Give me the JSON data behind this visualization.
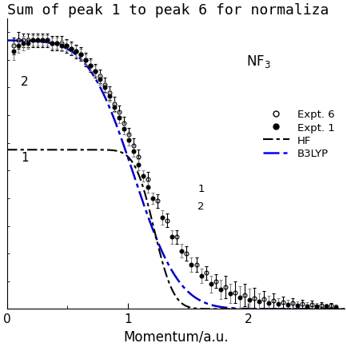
{
  "title": "Sum of peak 1 to peak 6 for normaliza",
  "xlabel": "Momentum/a.u.",
  "xlim": [
    0,
    2.8
  ],
  "ylim": [
    0,
    1.05
  ],
  "xticks": [
    0,
    1.0,
    2.0
  ],
  "expt6_x": [
    0.05,
    0.09,
    0.13,
    0.17,
    0.21,
    0.25,
    0.29,
    0.33,
    0.37,
    0.41,
    0.45,
    0.49,
    0.53,
    0.57,
    0.61,
    0.65,
    0.69,
    0.73,
    0.77,
    0.81,
    0.85,
    0.89,
    0.93,
    0.97,
    1.01,
    1.05,
    1.09,
    1.17,
    1.25,
    1.33,
    1.41,
    1.49,
    1.57,
    1.65,
    1.73,
    1.81,
    1.89,
    1.97,
    2.05,
    2.13,
    2.21,
    2.29,
    2.37,
    2.45,
    2.53,
    2.61,
    2.69
  ],
  "expt6_y": [
    0.95,
    0.97,
    0.97,
    0.97,
    0.97,
    0.97,
    0.97,
    0.97,
    0.96,
    0.96,
    0.96,
    0.95,
    0.94,
    0.93,
    0.92,
    0.9,
    0.88,
    0.86,
    0.84,
    0.81,
    0.78,
    0.74,
    0.71,
    0.67,
    0.63,
    0.59,
    0.55,
    0.47,
    0.39,
    0.32,
    0.26,
    0.2,
    0.16,
    0.13,
    0.1,
    0.08,
    0.06,
    0.05,
    0.04,
    0.035,
    0.03,
    0.025,
    0.02,
    0.018,
    0.015,
    0.013,
    0.012
  ],
  "expt6_yerr": [
    0.03,
    0.03,
    0.025,
    0.025,
    0.025,
    0.025,
    0.025,
    0.025,
    0.025,
    0.025,
    0.025,
    0.025,
    0.025,
    0.025,
    0.025,
    0.025,
    0.025,
    0.025,
    0.025,
    0.025,
    0.025,
    0.025,
    0.025,
    0.025,
    0.025,
    0.025,
    0.025,
    0.025,
    0.025,
    0.025,
    0.025,
    0.025,
    0.025,
    0.025,
    0.025,
    0.04,
    0.04,
    0.04,
    0.035,
    0.03,
    0.025,
    0.02,
    0.018,
    0.016,
    0.014,
    0.012,
    0.01
  ],
  "expt1_x": [
    0.05,
    0.09,
    0.13,
    0.17,
    0.21,
    0.25,
    0.29,
    0.33,
    0.37,
    0.41,
    0.45,
    0.49,
    0.53,
    0.57,
    0.61,
    0.65,
    0.69,
    0.73,
    0.77,
    0.81,
    0.85,
    0.89,
    0.93,
    0.97,
    1.01,
    1.05,
    1.09,
    1.13,
    1.17,
    1.21,
    1.29,
    1.37,
    1.45,
    1.53,
    1.61,
    1.69,
    1.77,
    1.85,
    1.93,
    2.01,
    2.09,
    2.17,
    2.25,
    2.33,
    2.41,
    2.49,
    2.57,
    2.65,
    2.73
  ],
  "expt1_y": [
    0.93,
    0.95,
    0.96,
    0.96,
    0.97,
    0.97,
    0.97,
    0.97,
    0.96,
    0.96,
    0.95,
    0.95,
    0.94,
    0.93,
    0.92,
    0.9,
    0.88,
    0.86,
    0.83,
    0.8,
    0.77,
    0.73,
    0.69,
    0.65,
    0.61,
    0.57,
    0.52,
    0.48,
    0.44,
    0.4,
    0.33,
    0.26,
    0.21,
    0.16,
    0.12,
    0.09,
    0.07,
    0.055,
    0.043,
    0.034,
    0.027,
    0.022,
    0.018,
    0.015,
    0.013,
    0.011,
    0.01,
    0.009,
    0.008
  ],
  "expt1_yerr": [
    0.03,
    0.025,
    0.025,
    0.02,
    0.02,
    0.02,
    0.02,
    0.02,
    0.02,
    0.02,
    0.02,
    0.02,
    0.02,
    0.02,
    0.02,
    0.02,
    0.02,
    0.02,
    0.02,
    0.02,
    0.02,
    0.02,
    0.02,
    0.02,
    0.02,
    0.02,
    0.02,
    0.02,
    0.02,
    0.02,
    0.025,
    0.025,
    0.025,
    0.025,
    0.025,
    0.03,
    0.035,
    0.035,
    0.04,
    0.038,
    0.03,
    0.025,
    0.02,
    0.018,
    0.015,
    0.013,
    0.011,
    0.01,
    0.009
  ],
  "hf_color": "#000000",
  "b3lyp_color": "#0000cc",
  "expt_color": "#000000",
  "background_color": "#ffffff",
  "title_fontsize": 13,
  "label_fontsize": 12,
  "tick_fontsize": 11
}
